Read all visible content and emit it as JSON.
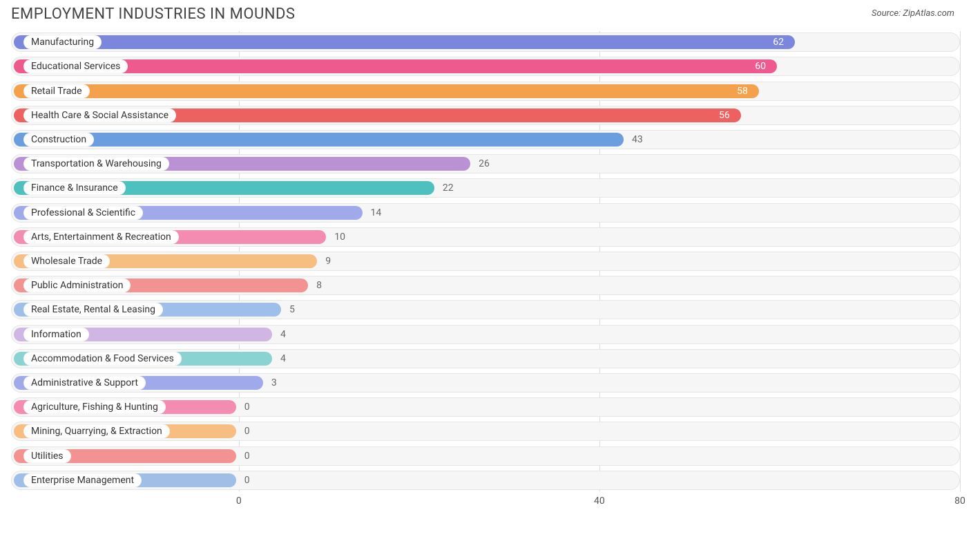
{
  "header": {
    "title": "EMPLOYMENT INDUSTRIES IN MOUNDS",
    "source": "Source: ZipAtlas.com"
  },
  "chart": {
    "type": "bar-horizontal",
    "xmin": 0,
    "xmax": 80,
    "xticks": [
      0,
      40,
      80
    ],
    "track_bg": "#f6f6f6",
    "track_border": "#e5e5e5",
    "grid_color": "#dddddd",
    "label_bg": "#ffffff",
    "value_color_inside": "#ffffff",
    "value_color_outside": "#666666",
    "value_threshold_inside": 50,
    "label_offset_pct": 24,
    "bars": [
      {
        "label": "Manufacturing",
        "value": 62,
        "color": "#7b86dd"
      },
      {
        "label": "Educational Services",
        "value": 60,
        "color": "#ef5a8e"
      },
      {
        "label": "Retail Trade",
        "value": 58,
        "color": "#f3a24b"
      },
      {
        "label": "Health Care & Social Assistance",
        "value": 56,
        "color": "#ed6260"
      },
      {
        "label": "Construction",
        "value": 43,
        "color": "#6a9ede"
      },
      {
        "label": "Transportation & Warehousing",
        "value": 26,
        "color": "#ba92d4"
      },
      {
        "label": "Finance & Insurance",
        "value": 22,
        "color": "#4ec0be"
      },
      {
        "label": "Professional & Scientific",
        "value": 14,
        "color": "#a0aaea"
      },
      {
        "label": "Arts, Entertainment & Recreation",
        "value": 10,
        "color": "#f48cb1"
      },
      {
        "label": "Wholesale Trade",
        "value": 9,
        "color": "#f7be82"
      },
      {
        "label": "Public Administration",
        "value": 8,
        "color": "#f29291"
      },
      {
        "label": "Real Estate, Rental & Leasing",
        "value": 5,
        "color": "#9fbfe8"
      },
      {
        "label": "Information",
        "value": 4,
        "color": "#d0b6e3"
      },
      {
        "label": "Accommodation & Food Services",
        "value": 4,
        "color": "#89d4d2"
      },
      {
        "label": "Administrative & Support",
        "value": 3,
        "color": "#a0aaea"
      },
      {
        "label": "Agriculture, Fishing & Hunting",
        "value": 0,
        "color": "#f48cb1"
      },
      {
        "label": "Mining, Quarrying, & Extraction",
        "value": 0,
        "color": "#f7be82"
      },
      {
        "label": "Utilities",
        "value": 0,
        "color": "#f29291"
      },
      {
        "label": "Enterprise Management",
        "value": 0,
        "color": "#9fbfe8"
      }
    ]
  }
}
